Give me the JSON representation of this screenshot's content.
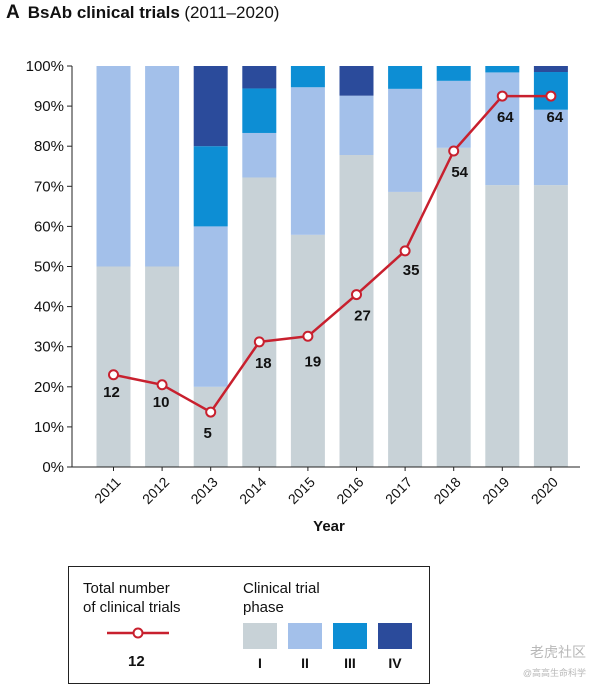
{
  "header": {
    "panel_letter": "A",
    "title": "BsAb clinical trials",
    "subtitle": "(2011–2020)"
  },
  "chart_data": {
    "type": "bar",
    "stacked": true,
    "title": "BsAb clinical trials (2011–2020)",
    "xlabel": "Year",
    "ylabel": "",
    "ylim": [
      0,
      100
    ],
    "y_ticks": [
      "0%",
      "10%",
      "20%",
      "30%",
      "40%",
      "50%",
      "60%",
      "70%",
      "80%",
      "90%",
      "100%"
    ],
    "categories": [
      "2011",
      "2012",
      "2013",
      "2014",
      "2015",
      "2016",
      "2017",
      "2018",
      "2019",
      "2020"
    ],
    "series": [
      {
        "name": "I",
        "color": "#c8d2d7",
        "values": [
          50,
          50,
          20,
          72.2,
          57.9,
          77.8,
          68.6,
          79.6,
          70.3,
          70.3
        ]
      },
      {
        "name": "II",
        "color": "#a3c0ea",
        "values": [
          50,
          50,
          40,
          11.1,
          36.8,
          14.8,
          25.7,
          16.7,
          28.1,
          18.8
        ]
      },
      {
        "name": "III",
        "color": "#0d8ed4",
        "values": [
          0,
          0,
          20,
          11.1,
          5.3,
          0,
          5.7,
          3.7,
          1.6,
          9.4
        ]
      },
      {
        "name": "IV",
        "color": "#2b4b9b",
        "values": [
          0,
          0,
          20,
          5.6,
          0,
          7.4,
          0,
          0,
          0,
          1.5
        ]
      }
    ],
    "line": {
      "name": "Total number of clinical trials",
      "color": "#c8202e",
      "y_percent": [
        23,
        20.5,
        13.7,
        31.2,
        32.6,
        43,
        53.9,
        78.8,
        92.5,
        92.5
      ],
      "labels": [
        "12",
        "10",
        "5",
        "18",
        "19",
        "27",
        "35",
        "54",
        "64",
        "64"
      ]
    }
  },
  "legend": {
    "total_label_line1": "Total number",
    "total_label_line2": "of clinical trials",
    "total_example": "12",
    "phase_label_line1": "Clinical trial",
    "phase_label_line2": "phase",
    "phases": [
      {
        "name": "I",
        "color": "#c8d2d7"
      },
      {
        "name": "II",
        "color": "#a3c0ea"
      },
      {
        "name": "III",
        "color": "#0d8ed4"
      },
      {
        "name": "IV",
        "color": "#2b4b9b"
      }
    ]
  },
  "watermark": {
    "line1": "老虎社区",
    "line2": "@高高生命科学"
  }
}
